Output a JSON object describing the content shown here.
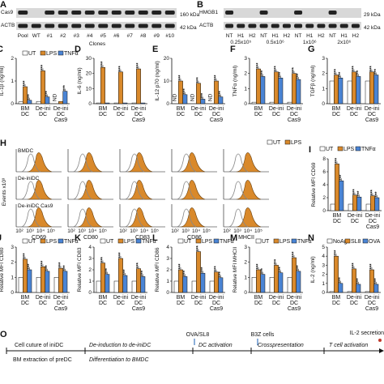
{
  "colors": {
    "ut": "#ffffff",
    "lps": "#d9892b",
    "tnfa": "#4a84d4",
    "nohag": "#ffffff",
    "sl8": "#d9892b",
    "ova": "#4a84d4",
    "hist_fill": "#d9892b",
    "hist_line": "#888888"
  },
  "legend_ut_lps_tnfa": [
    "UT",
    "LPS",
    "TNFα"
  ],
  "legend_noag": [
    "NoAg",
    "SL8",
    "OVA"
  ],
  "panel_A": {
    "letter": "A",
    "blots": [
      "Cas9",
      "ACTB"
    ],
    "sizes": [
      "160 kDa",
      "42 kDa"
    ],
    "lanes": [
      "Pool",
      "WT",
      "#1",
      "#2",
      "#3",
      "#4",
      "#5",
      "#6",
      "#7",
      "#8",
      "#9",
      "#10"
    ],
    "footer": "Clones"
  },
  "panel_B": {
    "letter": "B",
    "blots": [
      "HMGB1",
      "ACTB"
    ],
    "sizes": [
      "29 kDa",
      "42 kDa"
    ],
    "lanes": [
      "NT",
      "H1",
      "H2",
      "NT",
      "H1",
      "H2",
      "NT",
      "H1",
      "H2",
      "NT",
      "H1",
      "H2"
    ],
    "groups": [
      "0.25x10⁵",
      "0.5x10⁶",
      "1x10⁶",
      "2x10⁶"
    ]
  },
  "cats3": [
    "BM DC",
    "De-ini DC",
    "De-ini DC Cas9"
  ],
  "panel_C": {
    "letter": "C",
    "ylabel": "IL-1β (ng/ml)",
    "ticks": [
      "0",
      "1",
      "2"
    ],
    "nd": "ND",
    "chart_data": {
      "type": "bar",
      "categories": [
        "BM DC",
        "De-ini DC",
        "De-ini DC Cas9"
      ],
      "series": [
        {
          "name": "UT",
          "values": [
            0.08,
            0.1,
            0.0
          ]
        },
        {
          "name": "LPS",
          "values": [
            0.75,
            1.45,
            0.1
          ]
        },
        {
          "name": "TNFα",
          "values": [
            0.15,
            0.3,
            0.55
          ]
        }
      ],
      "ylim": [
        0,
        2
      ]
    }
  },
  "panel_D": {
    "letter": "D",
    "ylabel": "IL-6 (ng/ml)",
    "ticks": [
      "0",
      "10",
      "20",
      "30"
    ],
    "nd": "ND",
    "chart_data": {
      "type": "bar",
      "categories": [
        "BM DC",
        "De-ini DC",
        "De-ini DC Cas9"
      ],
      "series": [
        {
          "name": "UT",
          "values": [
            0.5,
            0.5,
            0.5
          ]
        },
        {
          "name": "LPS",
          "values": [
            24,
            21,
            23
          ]
        },
        {
          "name": "TNFα",
          "values": [
            0.5,
            0.5,
            0.5
          ]
        }
      ],
      "ylim": [
        0,
        30
      ]
    }
  },
  "panel_E": {
    "letter": "E",
    "ylabel": "IL-12 p70 (ng/ml)",
    "ticks": [
      "0",
      "10",
      "20"
    ],
    "nd": "ND",
    "chart_data": {
      "type": "bar",
      "categories": [
        "BM DC",
        "De-ini DC",
        "De-ini DC Cas9"
      ],
      "series": [
        {
          "name": "UT",
          "values": [
            0.0,
            0.0,
            0.0
          ]
        },
        {
          "name": "LPS",
          "values": [
            10,
            9,
            10
          ]
        },
        {
          "name": "TNFα",
          "values": [
            4,
            2,
            3
          ]
        }
      ],
      "ylim": [
        0,
        20
      ]
    }
  },
  "panel_F": {
    "letter": "F",
    "ylabel": "TNFα (ng/ml)",
    "ticks": [
      "0",
      "1",
      "2",
      "3"
    ],
    "chart_data": {
      "type": "bar",
      "categories": [
        "BM DC",
        "De-ini DC",
        "De-ini DC Cas9"
      ],
      "series": [
        {
          "name": "UT",
          "values": [
            0.1,
            0.1,
            0.1
          ]
        },
        {
          "name": "LPS",
          "values": [
            2.3,
            2.1,
            2.0
          ]
        },
        {
          "name": "TNFα",
          "values": [
            1.8,
            1.7,
            1.6
          ]
        }
      ],
      "ylim": [
        0,
        3
      ]
    }
  },
  "panel_G": {
    "letter": "G",
    "ylabel": "TGFβ (ng/ml)",
    "ticks": [
      "0",
      "1",
      "2",
      "3"
    ],
    "chart_data": {
      "type": "bar",
      "categories": [
        "BM DC",
        "De-ini DC",
        "De-ini DC Cas9"
      ],
      "series": [
        {
          "name": "UT",
          "values": [
            1.5,
            1.5,
            1.5
          ]
        },
        {
          "name": "LPS",
          "values": [
            1.9,
            2.1,
            2.1
          ]
        },
        {
          "name": "TNFα",
          "values": [
            1.7,
            1.8,
            1.9
          ]
        }
      ],
      "ylim": [
        0,
        3
      ]
    }
  },
  "panel_H": {
    "letter": "H",
    "rows": [
      "BMDC",
      "De-iniDC",
      "De-iniDC Cas9"
    ],
    "markers": [
      "CD69",
      "CD80",
      "CD83",
      "CD86",
      "MHCII"
    ],
    "ylabel": "Events x10³",
    "xticks": [
      "10²",
      "10³",
      "10⁴",
      "10⁵"
    ],
    "legend": [
      "UT",
      "LPS"
    ]
  },
  "panel_I": {
    "letter": "I",
    "ylabel": "Relative MFI CD69",
    "ticks": [
      "0",
      "2",
      "4",
      "6",
      "8"
    ],
    "chart_data": {
      "type": "bar",
      "categories": [
        "BM DC",
        "De-ini DC",
        "De-ini DC Cas9"
      ],
      "series": [
        {
          "name": "UT",
          "values": [
            1,
            1,
            1
          ]
        },
        {
          "name": "LPS",
          "values": [
            7.2,
            2.4,
            2.3
          ]
        },
        {
          "name": "TNFα",
          "values": [
            4.6,
            2.1,
            2.0
          ]
        }
      ],
      "ylim": [
        0,
        8
      ]
    }
  },
  "panel_J": {
    "letter": "J",
    "ylabel": "Relative MFI CD80",
    "ticks": [
      "0",
      "1",
      "2",
      "3"
    ],
    "chart_data": {
      "type": "bar",
      "categories": [
        "BM DC",
        "De-ini DC",
        "De-ini DC Cas9"
      ],
      "series": [
        {
          "name": "UT",
          "values": [
            1,
            1,
            1
          ]
        },
        {
          "name": "LPS",
          "values": [
            2.2,
            1.7,
            1.6
          ]
        },
        {
          "name": "TNFα",
          "values": [
            1.5,
            1.4,
            1.4
          ]
        }
      ],
      "ylim": [
        0,
        3
      ]
    }
  },
  "panel_K": {
    "letter": "K",
    "ylabel": "Relative MFI CD83",
    "ticks": [
      "0",
      "1",
      "2",
      "3",
      "4"
    ],
    "chart_data": {
      "type": "bar",
      "categories": [
        "BM DC",
        "De-ini DC",
        "De-ini DC Cas9"
      ],
      "series": [
        {
          "name": "UT",
          "values": [
            1,
            1,
            1
          ]
        },
        {
          "name": "LPS",
          "values": [
            2.6,
            3.0,
            2.1
          ]
        },
        {
          "name": "TNFα",
          "values": [
            1.6,
            1.5,
            1.4
          ]
        }
      ],
      "ylim": [
        0,
        4
      ]
    }
  },
  "panel_L": {
    "letter": "L",
    "ylabel": "Relative MFI CD86",
    "ticks": [
      "0",
      "1",
      "2",
      "3",
      "4"
    ],
    "chart_data": {
      "type": "bar",
      "categories": [
        "BM DC",
        "De-ini DC",
        "De-ini DC Cas9"
      ],
      "series": [
        {
          "name": "UT",
          "values": [
            1,
            1,
            1
          ]
        },
        {
          "name": "LPS",
          "values": [
            2.0,
            3.6,
            1.8
          ]
        },
        {
          "name": "TNFα",
          "values": [
            1.4,
            1.7,
            1.3
          ]
        }
      ],
      "ylim": [
        0,
        4
      ]
    }
  },
  "panel_M": {
    "letter": "M",
    "ylabel": "Relative MFI MHCII",
    "ticks": [
      "0",
      "1",
      "2",
      "3"
    ],
    "chart_data": {
      "type": "bar",
      "categories": [
        "BM DC",
        "De-ini DC",
        "De-ini DC Cas9"
      ],
      "series": [
        {
          "name": "UT",
          "values": [
            1,
            1,
            1
          ]
        },
        {
          "name": "LPS",
          "values": [
            1.5,
            1.8,
            2.3
          ]
        },
        {
          "name": "TNFα",
          "values": [
            1.2,
            1.3,
            1.4
          ]
        }
      ],
      "ylim": [
        0,
        3
      ]
    }
  },
  "panel_N": {
    "letter": "N",
    "ylabel": "IL-2 (ng/ml)",
    "ticks": [
      "0",
      "1",
      "2",
      "3",
      "4",
      "5"
    ],
    "chart_data": {
      "type": "bar",
      "categories": [
        "BM DC",
        "De-ini DC",
        "De-ini DC Cas9"
      ],
      "series": [
        {
          "name": "NoAg",
          "values": [
            0.1,
            0.1,
            0.1
          ]
        },
        {
          "name": "SL8",
          "values": [
            4.0,
            2.6,
            2.5
          ]
        },
        {
          "name": "OVA",
          "values": [
            1.0,
            0.9,
            0.9
          ]
        }
      ],
      "ylim": [
        0,
        5
      ]
    }
  },
  "panel_O": {
    "letter": "O",
    "steps": [
      "Cell cuture of iniDC",
      "BM extraction of preDC",
      "De-induction to de-iniDC",
      "Differentiation to BMDC",
      "OVA/SL8",
      "B3Z cells",
      "DC activation",
      "Crosspresentation",
      "T cell activation",
      "IL-2 secretion"
    ]
  }
}
